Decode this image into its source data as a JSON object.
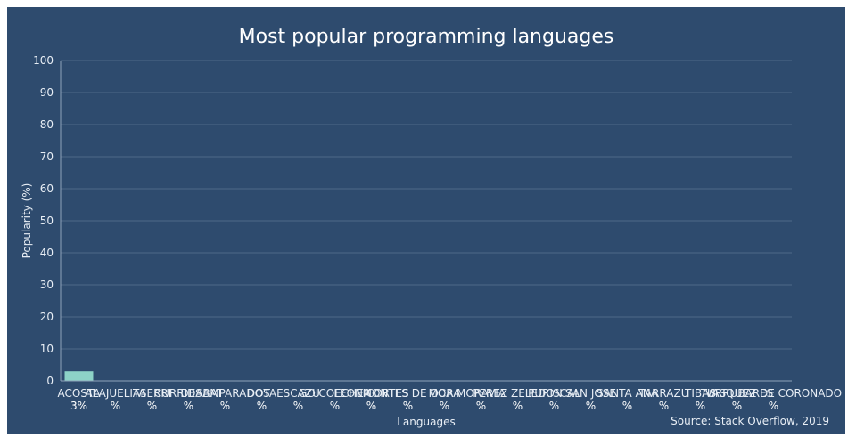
{
  "chart_data": {
    "type": "bar",
    "title": "Most popular programming languages",
    "xlabel": "Languages",
    "ylabel": "Popularity (%)",
    "ylim": [
      0,
      100
    ],
    "yticks": [
      0,
      10,
      20,
      30,
      40,
      50,
      60,
      70,
      80,
      90,
      100
    ],
    "grid": true,
    "source": "Source: Stack Overflow, 2019",
    "bar_color": "#8dd3c7",
    "categories": [
      "ACOSTA",
      "ALAJUELITA",
      "ASERRI",
      "CURRIDABAT",
      "DESAMPARADOS",
      "DOTA",
      "ESCAZU",
      "GOICOECHEA",
      "LEON CORTES",
      "MONTES DE OCA",
      "MORA",
      "MORAVIA",
      "PEREZ ZELEDON",
      "PURISCAL",
      "SAN JOSE",
      "SANTA ANA",
      "TARRAZU",
      "TIBAS",
      "TURRUBARES",
      "VASQUEZ DE CORONADO"
    ],
    "values": [
      3,
      0,
      0,
      0,
      0,
      0,
      0,
      0,
      0,
      0,
      0,
      0,
      0,
      0,
      0,
      0,
      0,
      0,
      0,
      0
    ],
    "data_labels": [
      "3%",
      "%",
      "%",
      "%",
      "%",
      "%",
      "%",
      "%",
      "%",
      "%",
      "%",
      "%",
      "%",
      "%",
      "%",
      "%",
      "%",
      "%",
      "%",
      "%"
    ]
  }
}
